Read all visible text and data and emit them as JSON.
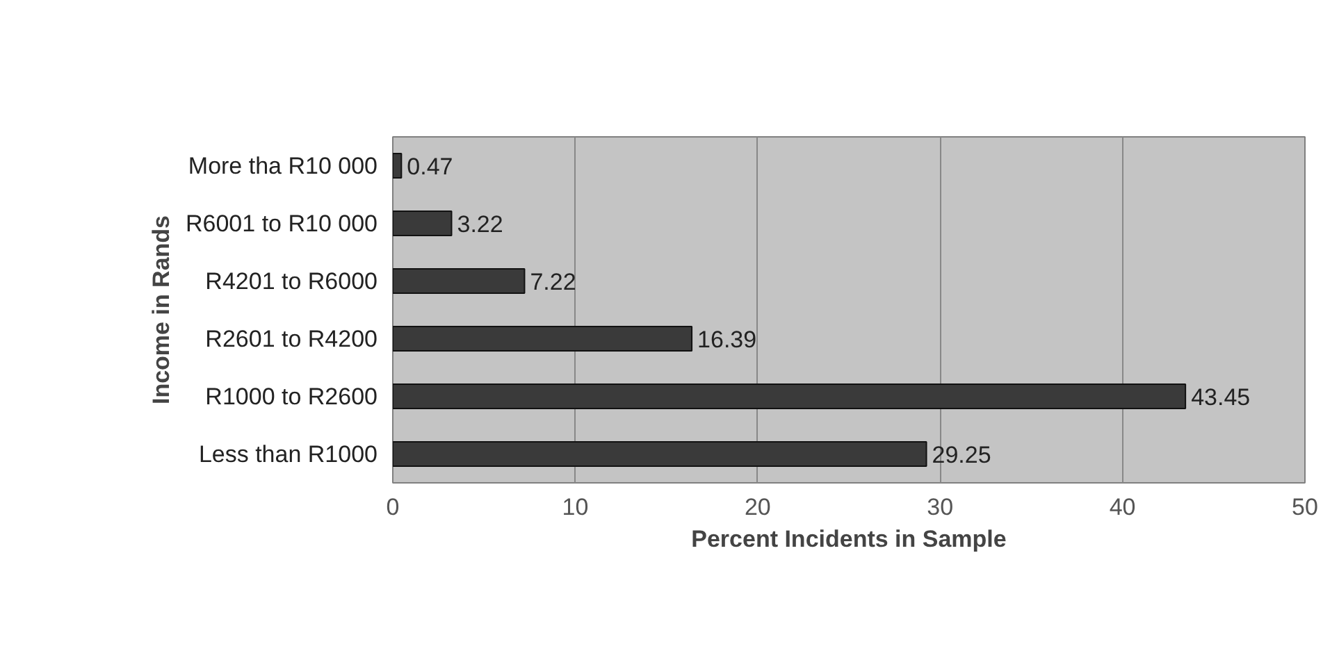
{
  "chart_data": {
    "type": "bar",
    "orientation": "horizontal",
    "categories": [
      "More tha R10 000",
      "R6001 to R10 000",
      "R4201 to R6000",
      "R2601 to R4200",
      "R1000 to R2600",
      "Less than R1000"
    ],
    "values": [
      0.47,
      3.22,
      7.22,
      16.39,
      43.45,
      29.25
    ],
    "color": "#3a3a3a",
    "xlim": [
      0,
      50
    ],
    "xticks": [
      0,
      10,
      20,
      30,
      40,
      50
    ],
    "xlabel": "Percent Incidents in Sample",
    "ylabel": "Income in Rands",
    "grid": "x",
    "data_labels": true
  }
}
